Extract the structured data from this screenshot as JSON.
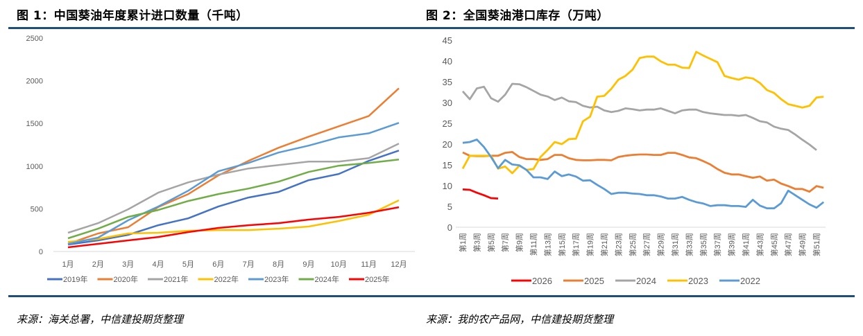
{
  "figures": {
    "left_title": "图 1：中国葵油年度累计进口数量（千吨）",
    "right_title": "图 2：全国葵油港口库存（万吨）",
    "left_source": "来源：海关总署，中信建投期货整理",
    "right_source": "来源：我的农产品网，中信建投期货整理"
  },
  "chart_data": [
    {
      "type": "line",
      "title": "图 1：中国葵油年度累计进口数量（千吨）",
      "xlabel": "",
      "ylabel": "",
      "categories": [
        "1月",
        "2月",
        "3月",
        "4月",
        "5月",
        "6月",
        "7月",
        "8月",
        "9月",
        "10月",
        "11月",
        "12月"
      ],
      "ylim": [
        0,
        2500
      ],
      "yticks": [
        0,
        500,
        1000,
        1500,
        2000,
        2500
      ],
      "grid": false,
      "legend": "bottom",
      "series": [
        {
          "name": "2019年",
          "color": "#4472c4",
          "values": [
            81,
            130,
            195,
            308,
            389,
            527,
            632,
            697,
            835,
            908,
            1062,
            1183
          ]
        },
        {
          "name": "2020年",
          "color": "#ed7d31",
          "values": [
            89,
            211,
            284,
            520,
            673,
            891,
            1062,
            1215,
            1345,
            1467,
            1588,
            1912
          ]
        },
        {
          "name": "2021年",
          "color": "#a5a5a5",
          "values": [
            219,
            332,
            494,
            689,
            810,
            900,
            972,
            1013,
            1053,
            1053,
            1094,
            1264
          ]
        },
        {
          "name": "2022年",
          "color": "#ffc000",
          "values": [
            113,
            146,
            211,
            219,
            243,
            251,
            251,
            267,
            292,
            357,
            430,
            600
          ]
        },
        {
          "name": "2023年",
          "color": "#5b9bd5",
          "values": [
            89,
            162,
            365,
            527,
            713,
            940,
            1037,
            1159,
            1240,
            1337,
            1385,
            1507
          ]
        },
        {
          "name": "2024年",
          "color": "#70ad47",
          "values": [
            154,
            267,
            405,
            486,
            592,
            673,
            737,
            818,
            932,
            1005,
            1037,
            1078
          ]
        },
        {
          "name": "2025年",
          "color": "#ff0000",
          "values": [
            49,
            89,
            130,
            170,
            227,
            276,
            308,
            332,
            373,
            405,
            454,
            519
          ]
        }
      ]
    },
    {
      "type": "line",
      "title": "图 2：全国葵油港口库存（万吨）",
      "xlabel": "",
      "ylabel": "",
      "x": [
        "第1周",
        "第2周",
        "第3周",
        "第4周",
        "第5周",
        "第6周",
        "第7周",
        "第8周",
        "第9周",
        "第10周",
        "第11周",
        "第12周",
        "第13周",
        "第14周",
        "第15周",
        "第16周",
        "第17周",
        "第18周",
        "第19周",
        "第20周",
        "第21周",
        "第22周",
        "第23周",
        "第24周",
        "第25周",
        "第26周",
        "第27周",
        "第28周",
        "第29周",
        "第30周",
        "第31周",
        "第32周",
        "第33周",
        "第34周",
        "第35周",
        "第36周",
        "第37周",
        "第38周",
        "第39周",
        "第40周",
        "第41周",
        "第42周",
        "第43周",
        "第44周",
        "第45周",
        "第46周",
        "第47周",
        "第48周",
        "第49周",
        "第50周",
        "第51周",
        "第52周"
      ],
      "xtick_labels": [
        "第1周",
        "第3周",
        "第5周",
        "第7周",
        "第9周",
        "第11周",
        "第13周",
        "第15周",
        "第17周",
        "第19周",
        "第21周",
        "第23周",
        "第25周",
        "第27周",
        "第29周",
        "第31周",
        "第33周",
        "第35周",
        "第37周",
        "第39周",
        "第41周",
        "第43周",
        "第45周",
        "第47周",
        "第49周",
        "第51周"
      ],
      "ylim": [
        0,
        45
      ],
      "yticks": [
        0,
        5,
        10,
        15,
        20,
        25,
        30,
        35,
        40,
        45
      ],
      "grid": false,
      "legend": "bottom",
      "series": [
        {
          "name": "2026",
          "color": "#ff0000",
          "values": [
            9.1,
            9.0,
            8.3,
            7.7,
            7.0,
            6.9
          ]
        },
        {
          "name": "2025",
          "color": "#ed7d31",
          "values": [
            18.0,
            17.2,
            17.1,
            17.1,
            17.2,
            17.2,
            17.9,
            18.1,
            16.9,
            16.4,
            16.4,
            16.2,
            16.4,
            17.4,
            17.4,
            16.6,
            16.2,
            16.1,
            16.1,
            16.2,
            16.2,
            16.1,
            16.9,
            17.2,
            17.4,
            17.5,
            17.5,
            17.4,
            17.4,
            17.9,
            17.9,
            17.4,
            16.8,
            16.6,
            15.9,
            15.1,
            14.0,
            13.1,
            12.7,
            12.7,
            12.3,
            11.9,
            12.2,
            11.2,
            11.45,
            10.5,
            9.9,
            9.2,
            9.2,
            8.55,
            9.9,
            9.5
          ]
        },
        {
          "name": "2024",
          "color": "#a5a5a5",
          "values": [
            32.7,
            30.8,
            33.4,
            33.8,
            31.05,
            30.2,
            31.9,
            34.5,
            34.4,
            33.7,
            32.8,
            31.9,
            31.45,
            30.6,
            31.2,
            30.3,
            30.1,
            29.2,
            28.8,
            29.0,
            28.1,
            27.7,
            28.0,
            28.6,
            28.4,
            28.1,
            28.3,
            28.3,
            28.6,
            28.0,
            27.4,
            28.1,
            28.3,
            28.3,
            27.7,
            27.4,
            27.2,
            27.0,
            27.0,
            26.8,
            27.0,
            26.3,
            25.5,
            25.2,
            24.2,
            23.7,
            23.4,
            22.3,
            21.05,
            19.9,
            18.55
          ]
        },
        {
          "name": "2023",
          "color": "#ffc000",
          "values": [
            14.1,
            17.2,
            17.2,
            17.2,
            17.2,
            14.1,
            14.6,
            13.0,
            14.8,
            13.8,
            14.0,
            16.9,
            18.6,
            20.5,
            20.0,
            21.2,
            21.3,
            25.5,
            26.6,
            31.4,
            31.6,
            33.3,
            35.5,
            36.4,
            37.9,
            40.7,
            41.05,
            41.05,
            39.9,
            39.1,
            39.1,
            38.4,
            38.3,
            42.2,
            41.3,
            40.5,
            39.7,
            36.4,
            35.9,
            35.5,
            36.05,
            35.8,
            34.7,
            33.0,
            32.3,
            30.8,
            29.6,
            29.2,
            28.8,
            29.2,
            31.2,
            31.4
          ]
        },
        {
          "name": "2022",
          "color": "#5b9bd5",
          "values": [
            20.3,
            20.5,
            21.1,
            19.3,
            16.9,
            14.2,
            16.2,
            15.1,
            14.9,
            13.8,
            12.0,
            12.0,
            11.6,
            13.4,
            12.3,
            12.7,
            12.2,
            11.2,
            11.3,
            10.2,
            9.2,
            8.0,
            8.3,
            8.3,
            8.1,
            8.0,
            7.7,
            7.7,
            7.4,
            6.9,
            6.9,
            7.3,
            6.6,
            6.05,
            5.7,
            5.1,
            5.3,
            5.3,
            5.1,
            5.1,
            4.9,
            6.6,
            5.2,
            4.55,
            4.55,
            5.8,
            8.8,
            7.7,
            6.6,
            5.5,
            4.7,
            6.05
          ]
        }
      ]
    }
  ]
}
